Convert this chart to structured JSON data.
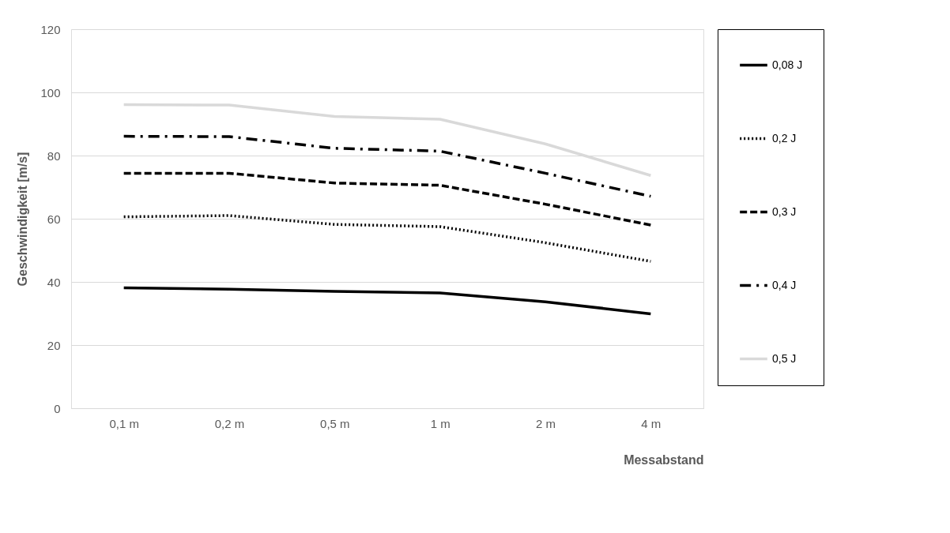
{
  "chart_data": {
    "type": "line",
    "xlabel": "Messabstand",
    "ylabel": "Geschwindigkeit [m/s]",
    "categories": [
      "0,1 m",
      "0,2 m",
      "0,5 m",
      "1 m",
      "2 m",
      "4 m"
    ],
    "series": [
      {
        "name": "0,08 J",
        "color": "#000000",
        "line_style": "solid",
        "values": [
          38.1,
          37.7,
          37.0,
          36.5,
          33.7,
          29.9
        ]
      },
      {
        "name": "0,2 J",
        "color": "#000000",
        "line_style": "dotted",
        "values": [
          60.6,
          61.0,
          58.2,
          57.5,
          52.4,
          46.5
        ]
      },
      {
        "name": "0,3 J",
        "color": "#000000",
        "line_style": "dashed",
        "values": [
          74.4,
          74.4,
          71.3,
          70.6,
          64.6,
          58.0
        ]
      },
      {
        "name": "0,4 J",
        "color": "#000000",
        "line_style": "dashdot",
        "values": [
          86.1,
          86.0,
          82.3,
          81.4,
          74.4,
          67.1
        ]
      },
      {
        "name": "0,5 J",
        "color": "#d9d9d9",
        "line_style": "solid",
        "values": [
          96.1,
          96.0,
          92.4,
          91.5,
          83.7,
          73.7
        ]
      }
    ],
    "ylim": [
      0,
      120
    ],
    "yticks": [
      0,
      20,
      40,
      60,
      80,
      100,
      120
    ],
    "grid": "y",
    "legend": "right",
    "marker": "none"
  }
}
